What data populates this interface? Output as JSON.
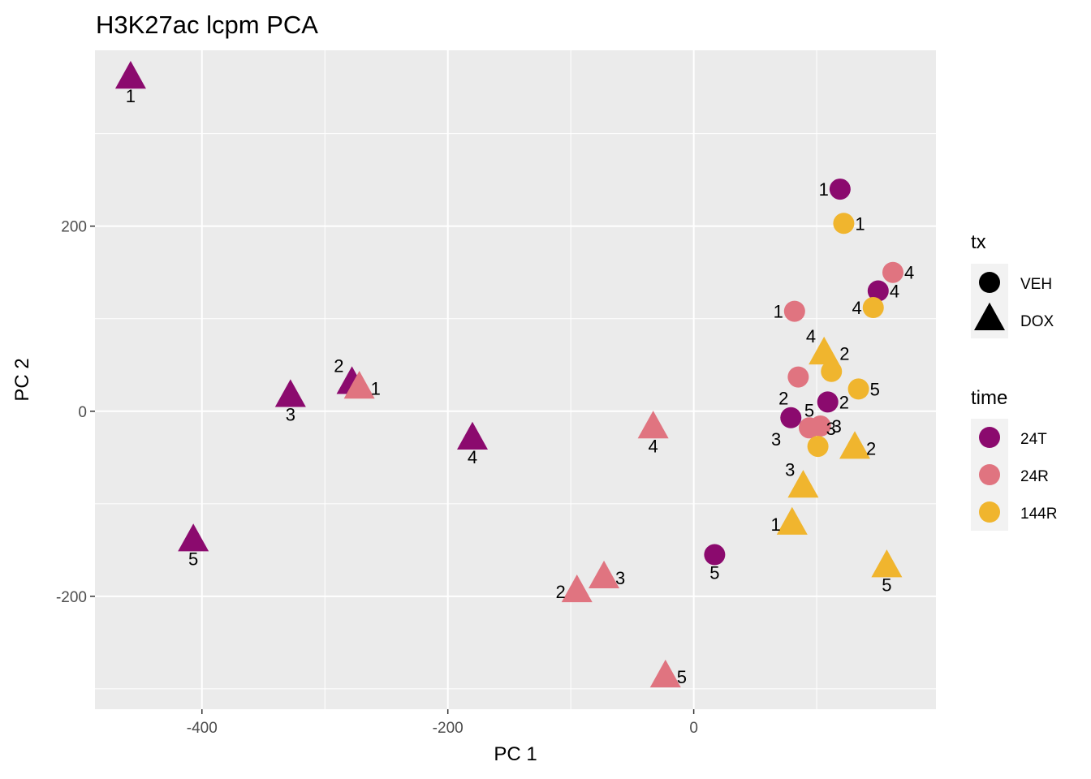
{
  "chart_data": {
    "type": "scatter",
    "title": "H3K27ac lcpm PCA",
    "xlabel": "PC 1",
    "ylabel": "PC 2",
    "xlim": [
      -487,
      197
    ],
    "ylim": [
      -322,
      390
    ],
    "x_ticks": [
      -400,
      -200,
      0
    ],
    "x_tick_labels": [
      "-400",
      "-200",
      "0"
    ],
    "y_ticks": [
      -200,
      0,
      200
    ],
    "y_tick_labels": [
      "-200",
      "0",
      "200"
    ],
    "grid": true,
    "legend_position": "right",
    "legends": {
      "shape": {
        "title": "tx",
        "entries": [
          {
            "label": "VEH",
            "shape": "circle"
          },
          {
            "label": "DOX",
            "shape": "triangle"
          }
        ]
      },
      "color": {
        "title": "time",
        "entries": [
          {
            "label": "24T",
            "color": "#8B0A6E"
          },
          {
            "label": "24R",
            "color": "#E07480"
          },
          {
            "label": "144R",
            "color": "#F0B52E"
          }
        ]
      }
    },
    "colors": {
      "24T": "#8B0A6E",
      "24R": "#E07480",
      "144R": "#F0B52E"
    },
    "points": [
      {
        "x": -458,
        "y": 360,
        "tx": "DOX",
        "time": "24T",
        "label": "1",
        "pos": "below"
      },
      {
        "x": -278,
        "y": 30,
        "tx": "DOX",
        "time": "24T",
        "label": "2",
        "pos": "above-left"
      },
      {
        "x": -328,
        "y": 16,
        "tx": "DOX",
        "time": "24T",
        "label": "3",
        "pos": "below"
      },
      {
        "x": -180,
        "y": -30,
        "tx": "DOX",
        "time": "24T",
        "label": "4",
        "pos": "below"
      },
      {
        "x": -407,
        "y": -140,
        "tx": "DOX",
        "time": "24T",
        "label": "5",
        "pos": "below"
      },
      {
        "x": -272,
        "y": 25,
        "tx": "DOX",
        "time": "24R",
        "label": "1",
        "pos": "right"
      },
      {
        "x": -95,
        "y": -195,
        "tx": "DOX",
        "time": "24R",
        "label": "2",
        "pos": "left"
      },
      {
        "x": -73,
        "y": -180,
        "tx": "DOX",
        "time": "24R",
        "label": "3",
        "pos": "right"
      },
      {
        "x": -33,
        "y": -18,
        "tx": "DOX",
        "time": "24R",
        "label": "4",
        "pos": "below"
      },
      {
        "x": -23,
        "y": -287,
        "tx": "DOX",
        "time": "24R",
        "label": "5",
        "pos": "right"
      },
      {
        "x": 80,
        "y": -122,
        "tx": "DOX",
        "time": "144R",
        "label": "1",
        "pos": "left"
      },
      {
        "x": 131,
        "y": -40,
        "tx": "DOX",
        "time": "144R",
        "label": "2",
        "pos": "right"
      },
      {
        "x": 89,
        "y": -82,
        "tx": "DOX",
        "time": "144R",
        "label": "3",
        "pos": "above-left"
      },
      {
        "x": 106,
        "y": 62,
        "tx": "DOX",
        "time": "144R",
        "label": "4",
        "pos": "above-left"
      },
      {
        "x": 157,
        "y": -168,
        "tx": "DOX",
        "time": "144R",
        "label": "5",
        "pos": "below"
      },
      {
        "x": 119,
        "y": 240,
        "tx": "VEH",
        "time": "24T",
        "label": "1",
        "pos": "left"
      },
      {
        "x": 109,
        "y": 10,
        "tx": "VEH",
        "time": "24T",
        "label": "2",
        "pos": "right"
      },
      {
        "x": 79,
        "y": -7,
        "tx": "VEH",
        "time": "24T",
        "label": "3",
        "pos": "below-left"
      },
      {
        "x": 150,
        "y": 130,
        "tx": "VEH",
        "time": "24T",
        "label": "4",
        "pos": "right"
      },
      {
        "x": 17,
        "y": -155,
        "tx": "VEH",
        "time": "24T",
        "label": "5",
        "pos": "below"
      },
      {
        "x": 82,
        "y": 108,
        "tx": "VEH",
        "time": "24R",
        "label": "1",
        "pos": "left"
      },
      {
        "x": 85,
        "y": 37,
        "tx": "VEH",
        "time": "24R",
        "label": "2",
        "pos": "below-left"
      },
      {
        "x": 103,
        "y": -16,
        "tx": "VEH",
        "time": "24R",
        "label": "3",
        "pos": "right"
      },
      {
        "x": 162,
        "y": 150,
        "tx": "VEH",
        "time": "24R",
        "label": "4",
        "pos": "right"
      },
      {
        "x": 94,
        "y": -18,
        "tx": "VEH",
        "time": "24R",
        "label": "5",
        "pos": "above"
      },
      {
        "x": 122,
        "y": 203,
        "tx": "VEH",
        "time": "144R",
        "label": "1",
        "pos": "right"
      },
      {
        "x": 112,
        "y": 43,
        "tx": "VEH",
        "time": "144R",
        "label": "2",
        "pos": "above-right"
      },
      {
        "x": 101,
        "y": -38,
        "tx": "VEH",
        "time": "144R",
        "label": "3",
        "pos": "above-right"
      },
      {
        "x": 146,
        "y": 112,
        "tx": "VEH",
        "time": "144R",
        "label": "4",
        "pos": "left"
      },
      {
        "x": 134,
        "y": 24,
        "tx": "VEH",
        "time": "144R",
        "label": "5",
        "pos": "right"
      }
    ]
  }
}
